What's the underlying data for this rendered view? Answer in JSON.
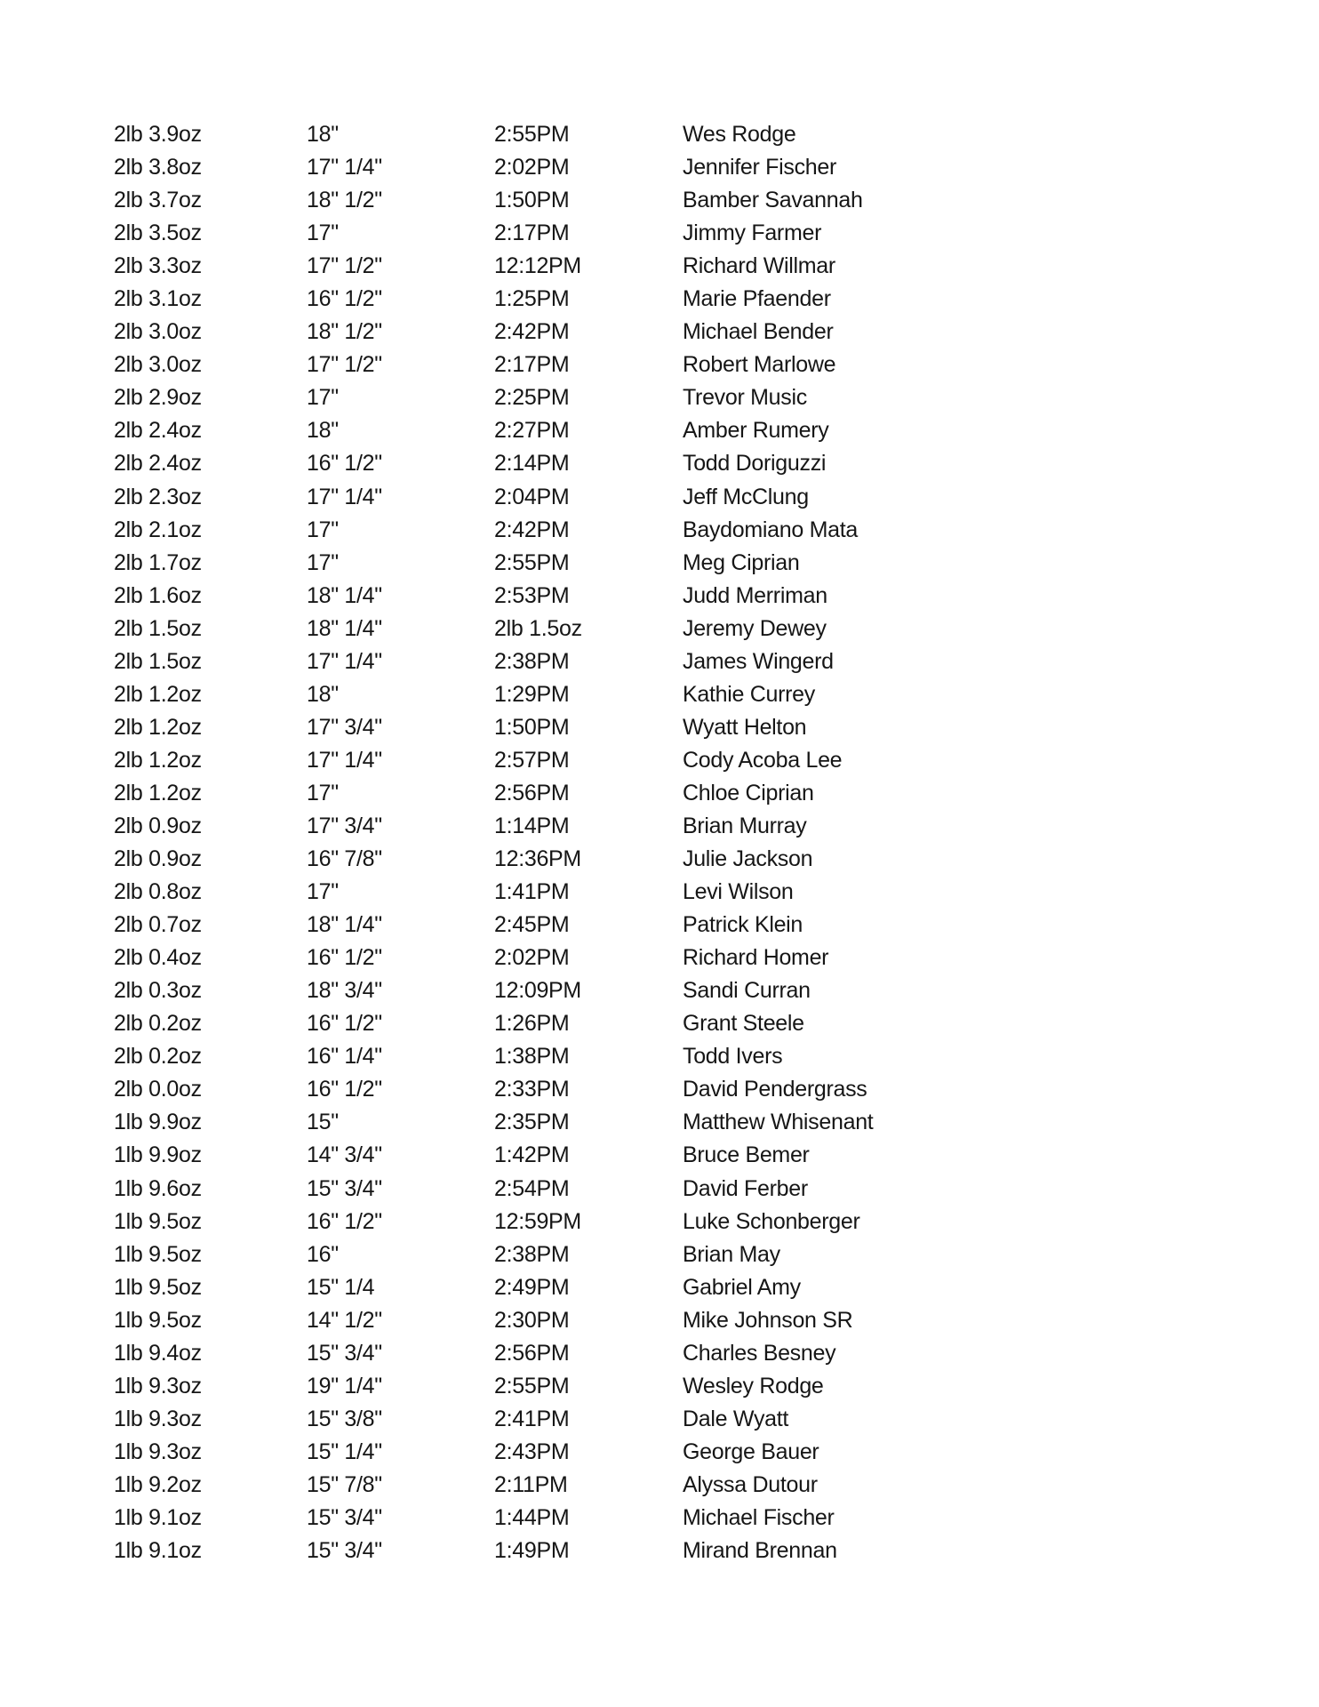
{
  "page": {
    "background": "#ffffff",
    "text_color": "#161616"
  },
  "table": {
    "rows": [
      {
        "weight": "2lb 3.9oz",
        "length": "18\"",
        "time": "2:55PM",
        "angler": "Wes Rodge"
      },
      {
        "weight": "2lb 3.8oz",
        "length": "17\" 1/4\"",
        "time": "2:02PM",
        "angler": "Jennifer Fischer"
      },
      {
        "weight": "2lb 3.7oz",
        "length": "18\" 1/2\"",
        "time": "1:50PM",
        "angler": "Bamber Savannah"
      },
      {
        "weight": "2lb 3.5oz",
        "length": "17\"",
        "time": "2:17PM",
        "angler": "Jimmy Farmer"
      },
      {
        "weight": "2lb 3.3oz",
        "length": "17\" 1/2\"",
        "time": "12:12PM",
        "angler": "Richard Willmar"
      },
      {
        "weight": "2lb 3.1oz",
        "length": "16\" 1/2\"",
        "time": "1:25PM",
        "angler": "Marie Pfaender"
      },
      {
        "weight": "2lb 3.0oz",
        "length": "18\" 1/2\"",
        "time": "2:42PM",
        "angler": "Michael Bender"
      },
      {
        "weight": "2lb 3.0oz",
        "length": "17\" 1/2\"",
        "time": "2:17PM",
        "angler": "Robert Marlowe"
      },
      {
        "weight": "2lb 2.9oz",
        "length": "17\"",
        "time": "2:25PM",
        "angler": "Trevor Music"
      },
      {
        "weight": "2lb 2.4oz",
        "length": "18\"",
        "time": "2:27PM",
        "angler": "Amber Rumery"
      },
      {
        "weight": "2lb 2.4oz",
        "length": "16\" 1/2\"",
        "time": "2:14PM",
        "angler": "Todd Doriguzzi"
      },
      {
        "weight": "2lb 2.3oz",
        "length": "17\" 1/4\"",
        "time": "2:04PM",
        "angler": "Jeff McClung"
      },
      {
        "weight": "2lb 2.1oz",
        "length": "17\"",
        "time": "2:42PM",
        "angler": "Baydomiano Mata"
      },
      {
        "weight": "2lb 1.7oz",
        "length": "17\"",
        "time": "2:55PM",
        "angler": "Meg Ciprian"
      },
      {
        "weight": "2lb 1.6oz",
        "length": "18\" 1/4\"",
        "time": "2:53PM",
        "angler": "Judd Merriman"
      },
      {
        "weight": "2lb 1.5oz",
        "length": "18\" 1/4\"",
        "time": "2lb 1.5oz",
        "angler": "Jeremy Dewey"
      },
      {
        "weight": "2lb 1.5oz",
        "length": "17\" 1/4\"",
        "time": "2:38PM",
        "angler": "James Wingerd"
      },
      {
        "weight": "2lb 1.2oz",
        "length": "18\"",
        "time": "1:29PM",
        "angler": "Kathie Currey"
      },
      {
        "weight": "2lb 1.2oz",
        "length": "17\" 3/4\"",
        "time": "1:50PM",
        "angler": "Wyatt Helton"
      },
      {
        "weight": "2lb 1.2oz",
        "length": "17\" 1/4\"",
        "time": "2:57PM",
        "angler": "Cody Acoba Lee"
      },
      {
        "weight": "2lb 1.2oz",
        "length": "17\"",
        "time": "2:56PM",
        "angler": "Chloe Ciprian"
      },
      {
        "weight": "2lb 0.9oz",
        "length": "17\" 3/4\"",
        "time": "1:14PM",
        "angler": "Brian Murray"
      },
      {
        "weight": "2lb 0.9oz",
        "length": "16\" 7/8\"",
        "time": "12:36PM",
        "angler": "Julie Jackson"
      },
      {
        "weight": "2lb 0.8oz",
        "length": "17\"",
        "time": "1:41PM",
        "angler": "Levi Wilson"
      },
      {
        "weight": "2lb 0.7oz",
        "length": "18\" 1/4\"",
        "time": "2:45PM",
        "angler": "Patrick Klein"
      },
      {
        "weight": "2lb 0.4oz",
        "length": "16\" 1/2\"",
        "time": "2:02PM",
        "angler": "Richard Homer"
      },
      {
        "weight": "2lb 0.3oz",
        "length": "18\" 3/4\"",
        "time": "12:09PM",
        "angler": "Sandi Curran"
      },
      {
        "weight": "2lb 0.2oz",
        "length": "16\" 1/2\"",
        "time": "1:26PM",
        "angler": "Grant Steele"
      },
      {
        "weight": "2lb 0.2oz",
        "length": "16\" 1/4\"",
        "time": "1:38PM",
        "angler": "Todd Ivers"
      },
      {
        "weight": "2lb 0.0oz",
        "length": "16\" 1/2\"",
        "time": "2:33PM",
        "angler": "David Pendergrass"
      },
      {
        "weight": "1lb 9.9oz",
        "length": "15\"",
        "time": "2:35PM",
        "angler": "Matthew Whisenant"
      },
      {
        "weight": "1lb 9.9oz",
        "length": "14\" 3/4\"",
        "time": "1:42PM",
        "angler": "Bruce Bemer"
      },
      {
        "weight": "1lb 9.6oz",
        "length": "15\" 3/4\"",
        "time": "2:54PM",
        "angler": "David Ferber"
      },
      {
        "weight": "1lb 9.5oz",
        "length": "16\" 1/2\"",
        "time": "12:59PM",
        "angler": "Luke Schonberger"
      },
      {
        "weight": "1lb 9.5oz",
        "length": "16\"",
        "time": "2:38PM",
        "angler": "Brian May"
      },
      {
        "weight": "1lb 9.5oz",
        "length": "15\" 1/4",
        "time": "2:49PM",
        "angler": "Gabriel Amy"
      },
      {
        "weight": "1lb 9.5oz",
        "length": "14\" 1/2\"",
        "time": "2:30PM",
        "angler": "Mike Johnson SR"
      },
      {
        "weight": "1lb 9.4oz",
        "length": "15\" 3/4\"",
        "time": "2:56PM",
        "angler": "Charles Besney"
      },
      {
        "weight": "1lb 9.3oz",
        "length": "19\" 1/4\"",
        "time": "2:55PM",
        "angler": "Wesley Rodge"
      },
      {
        "weight": "1lb 9.3oz",
        "length": "15\" 3/8\"",
        "time": "2:41PM",
        "angler": "Dale Wyatt"
      },
      {
        "weight": "1lb 9.3oz",
        "length": "15\" 1/4\"",
        "time": "2:43PM",
        "angler": "George Bauer"
      },
      {
        "weight": "1lb 9.2oz",
        "length": "15\" 7/8\"",
        "time": "2:11PM",
        "angler": "Alyssa Dutour"
      },
      {
        "weight": "1lb 9.1oz",
        "length": "15\" 3/4\"",
        "time": "1:44PM",
        "angler": "Michael Fischer"
      },
      {
        "weight": "1lb 9.1oz",
        "length": "15\" 3/4\"",
        "time": "1:49PM",
        "angler": "Mirand Brennan"
      }
    ]
  }
}
